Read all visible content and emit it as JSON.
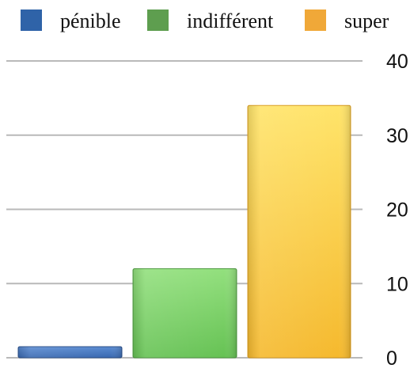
{
  "chart_data": {
    "type": "bar",
    "categories": [
      "pénible",
      "indifférent",
      "super"
    ],
    "series": [
      {
        "name": "pénible",
        "values": [
          1.5,
          null,
          null
        ],
        "color": "#3F6FB5"
      },
      {
        "name": "indifférent",
        "values": [
          null,
          12,
          null
        ],
        "color": "#6FCB5B"
      },
      {
        "name": "super",
        "values": [
          null,
          null,
          34
        ],
        "color": "#F6C23A"
      }
    ],
    "values": [
      1.5,
      12,
      34
    ],
    "title": "",
    "xlabel": "",
    "ylabel": "",
    "ylim": [
      0,
      40
    ],
    "yticks": [
      0,
      10,
      20,
      30,
      40
    ],
    "grid": true,
    "legend_position": "top",
    "axis_side": "right",
    "legend": [
      {
        "label": "pénible",
        "color": "#2F63A8"
      },
      {
        "label": "indifférent",
        "color": "#5E9E4F"
      },
      {
        "label": "super",
        "color": "#F0A838"
      }
    ],
    "bar_styles": [
      {
        "top": "#5A8BD2",
        "bottom": "#3868B0",
        "edge": "#2B4F88"
      },
      {
        "top": "#93E07E",
        "bottom": "#66C254",
        "edge": "#4E9A40"
      },
      {
        "top": "#FFE46A",
        "bottom": "#F5B92E",
        "edge": "#D89A1E"
      }
    ]
  }
}
